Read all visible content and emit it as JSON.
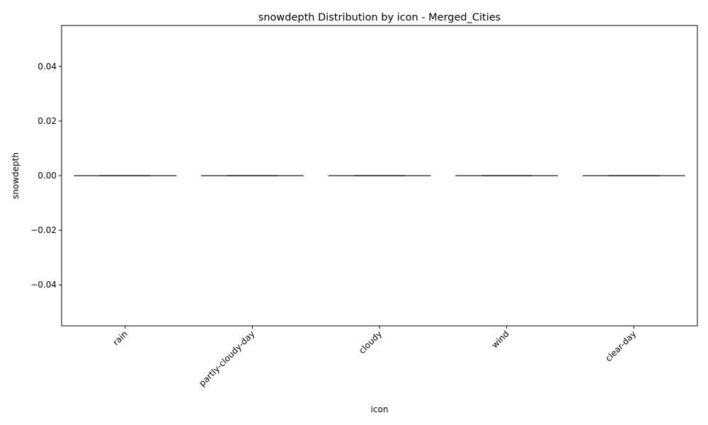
{
  "chart_data": {
    "type": "box",
    "title": "snowdepth Distribution by icon - Merged_Cities",
    "xlabel": "icon",
    "ylabel": "snowdepth",
    "categories": [
      "rain",
      "partly-cloudy-day",
      "cloudy",
      "wind",
      "clear-day"
    ],
    "series": [
      {
        "stats": [
          {
            "category": "rain",
            "min": 0,
            "q1": 0,
            "median": 0,
            "q3": 0,
            "max": 0
          },
          {
            "category": "partly-cloudy-day",
            "min": 0,
            "q1": 0,
            "median": 0,
            "q3": 0,
            "max": 0
          },
          {
            "category": "cloudy",
            "min": 0,
            "q1": 0,
            "median": 0,
            "q3": 0,
            "max": 0
          },
          {
            "category": "wind",
            "min": 0,
            "q1": 0,
            "median": 0,
            "q3": 0,
            "max": 0
          },
          {
            "category": "clear-day",
            "min": 0,
            "q1": 0,
            "median": 0,
            "q3": 0,
            "max": 0
          }
        ]
      }
    ],
    "ylim": [
      -0.055,
      0.055
    ],
    "yticks": [
      -0.04,
      -0.02,
      0.0,
      0.02,
      0.04
    ],
    "ytick_labels": [
      "−0.04",
      "−0.02",
      "0.00",
      "0.02",
      "0.04"
    ],
    "grid": false,
    "box_color": "#3a3a3a"
  }
}
